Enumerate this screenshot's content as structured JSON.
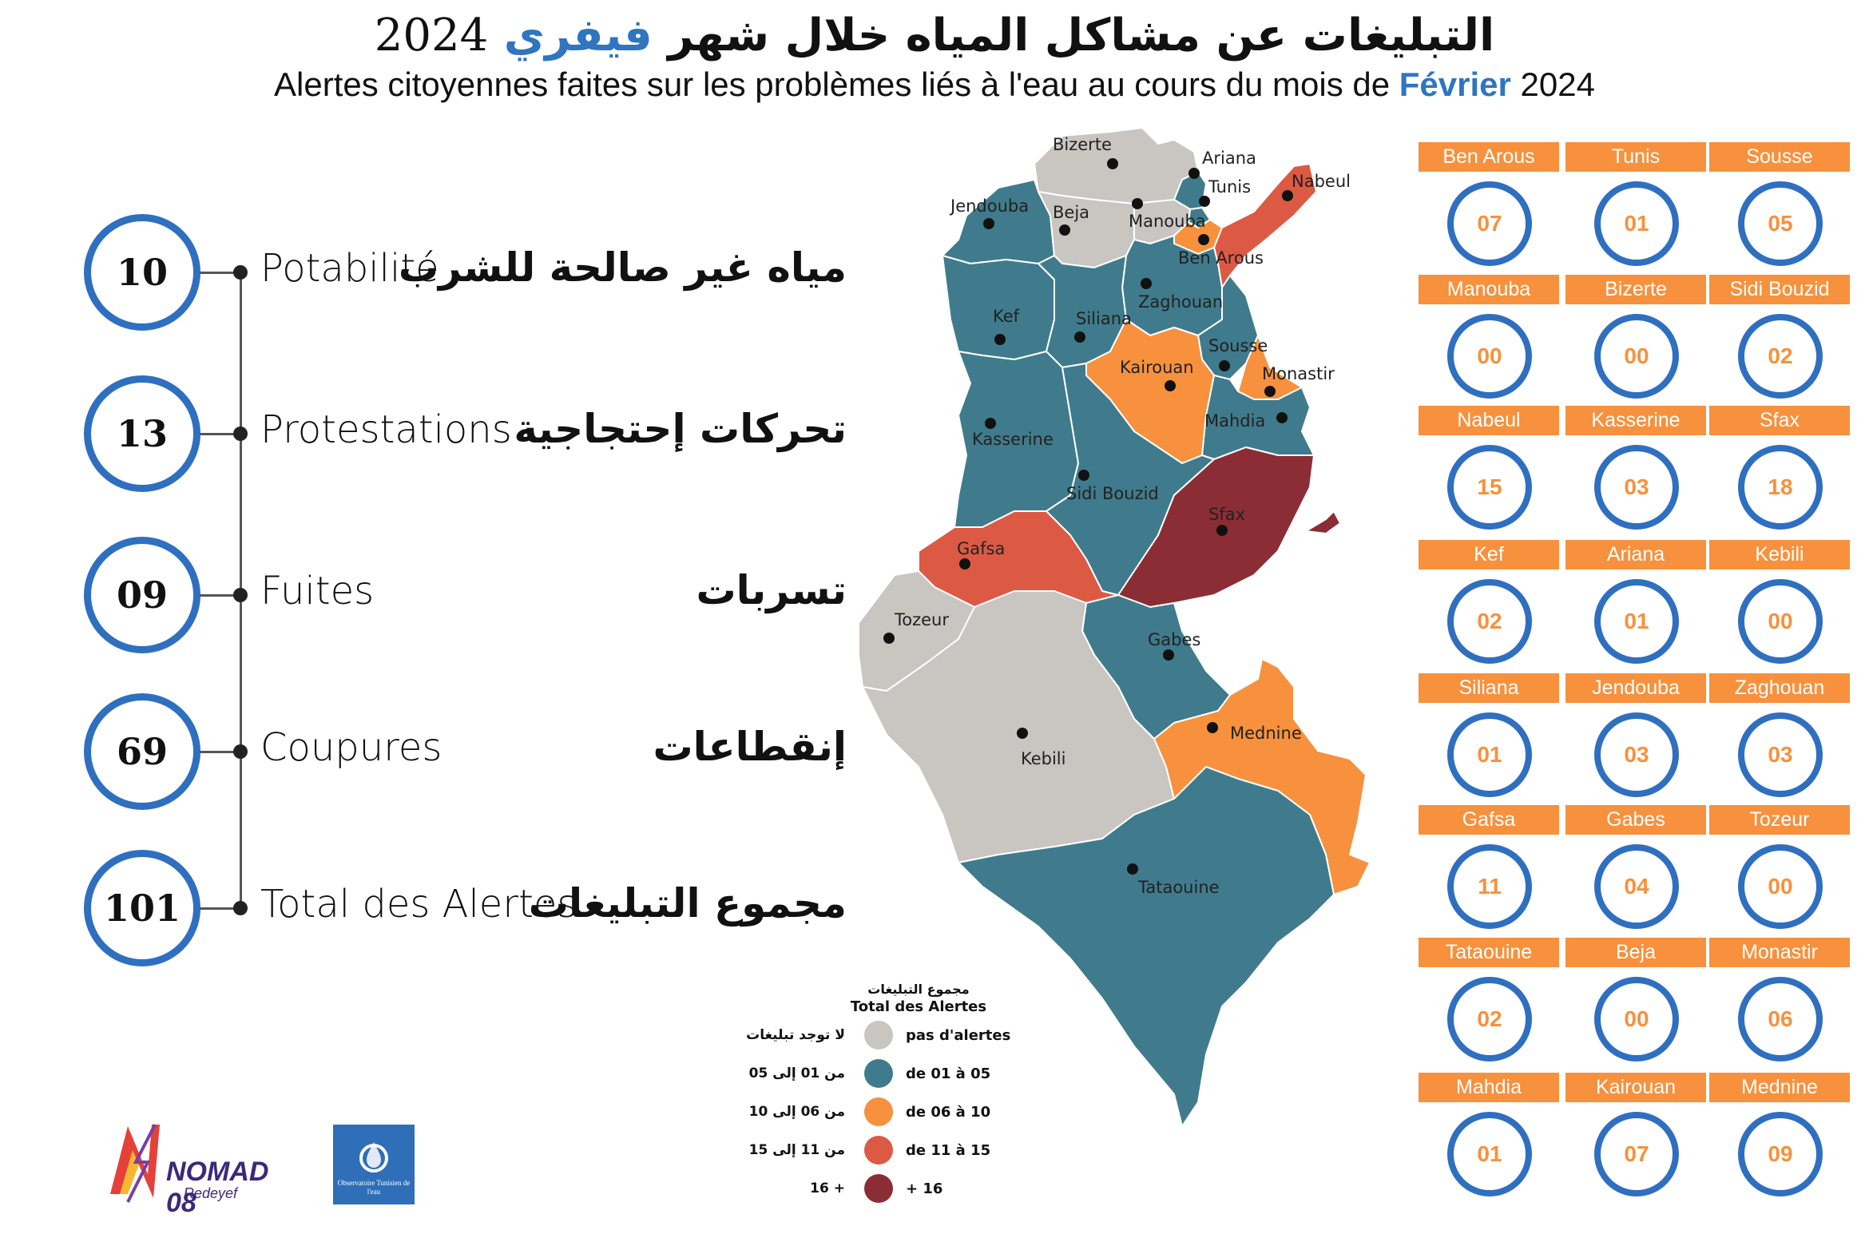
{
  "title": {
    "ar_main": "التبليغات عن مشاكل المياه خلال شهر",
    "ar_month": "فيفري",
    "year": "2024",
    "fr_main": "Alertes citoyennes faites sur les problèmes liés à l'eau au cours du mois de",
    "fr_month": "Février"
  },
  "stats": [
    {
      "value": "10",
      "fr": "Potabilité",
      "ar": "مياه غير صالحة للشرب"
    },
    {
      "value": "13",
      "fr": "Protestations",
      "ar": "تحركات إحتجاجية"
    },
    {
      "value": "09",
      "fr": "Fuites",
      "ar": "تسربات"
    },
    {
      "value": "69",
      "fr": "Coupures",
      "ar": "إنقطاعات"
    },
    {
      "value": "101",
      "fr": "Total des Alertes",
      "ar": "مجموع التبليغات"
    }
  ],
  "colors": {
    "none": "#c9c5c1",
    "low": "#3f7b8c",
    "mid": "#f7913d",
    "high": "#dc5a44",
    "top": "#8b2d35",
    "ring": "#2f6fc0",
    "accent": "#2f75c0"
  },
  "map_labels": {
    "bizerte": "Bizerte",
    "ariana": "Ariana",
    "tunis": "Tunis",
    "nabeul": "Nabeul",
    "jendouba": "Jendouba",
    "beja": "Beja",
    "manouba": "Manouba",
    "ben_arous": "Ben Arous",
    "zaghouan": "Zaghouan",
    "kef": "Kef",
    "siliana": "Siliana",
    "sousse": "Sousse",
    "kairouan": "Kairouan",
    "monastir": "Monastir",
    "kasserine": "Kasserine",
    "mahdia": "Mahdia",
    "sidi_bouzid": "Sidi Bouzid",
    "sfax": "Sfax",
    "gafsa": "Gafsa",
    "tozeur": "Tozeur",
    "gabes": "Gabes",
    "kebili": "Kebili",
    "mednine": "Mednine",
    "tataouine": "Tataouine"
  },
  "regions": [
    {
      "name": "Ben Arous",
      "value": "07"
    },
    {
      "name": "Tunis",
      "value": "01"
    },
    {
      "name": "Sousse",
      "value": "05"
    },
    {
      "name": "Manouba",
      "value": "00"
    },
    {
      "name": "Bizerte",
      "value": "00"
    },
    {
      "name": "Sidi Bouzid",
      "value": "02"
    },
    {
      "name": "Nabeul",
      "value": "15"
    },
    {
      "name": "Kasserine",
      "value": "03"
    },
    {
      "name": "Sfax",
      "value": "18"
    },
    {
      "name": "Kef",
      "value": "02"
    },
    {
      "name": "Ariana",
      "value": "01"
    },
    {
      "name": "Kebili",
      "value": "00"
    },
    {
      "name": "Siliana",
      "value": "01"
    },
    {
      "name": "Jendouba",
      "value": "03"
    },
    {
      "name": "Zaghouan",
      "value": "03"
    },
    {
      "name": "Gafsa",
      "value": "11"
    },
    {
      "name": "Gabes",
      "value": "04"
    },
    {
      "name": "Tozeur",
      "value": "00"
    },
    {
      "name": "Tataouine",
      "value": "02"
    },
    {
      "name": "Beja",
      "value": "00"
    },
    {
      "name": "Monastir",
      "value": "06"
    },
    {
      "name": "Mahdia",
      "value": "01"
    },
    {
      "name": "Kairouan",
      "value": "07"
    },
    {
      "name": "Mednine",
      "value": "09"
    }
  ],
  "legend": {
    "title_ar": "مجموع التبليغات",
    "title_fr": "Total des Alertes",
    "rows": [
      {
        "ar": "لا توجد تبليغات",
        "fr": "pas d'alertes",
        "color": "#c9c5c1"
      },
      {
        "ar": "من 01 إلى 05",
        "fr": "de 01 à 05",
        "color": "#3f7b8c"
      },
      {
        "ar": "من 06 إلى 10",
        "fr": "de 06 à 10",
        "color": "#f7913d"
      },
      {
        "ar": "من 11 إلى 15",
        "fr": "de 11 à 15",
        "color": "#dc5a44"
      },
      {
        "ar": "+ 16",
        "fr": "+ 16",
        "color": "#8b2d35"
      }
    ]
  },
  "logos": {
    "nomad": "NOMAD 08",
    "nomad_sub": "Redeyef",
    "ote": "Observatoire Tunisien de l'eau"
  }
}
